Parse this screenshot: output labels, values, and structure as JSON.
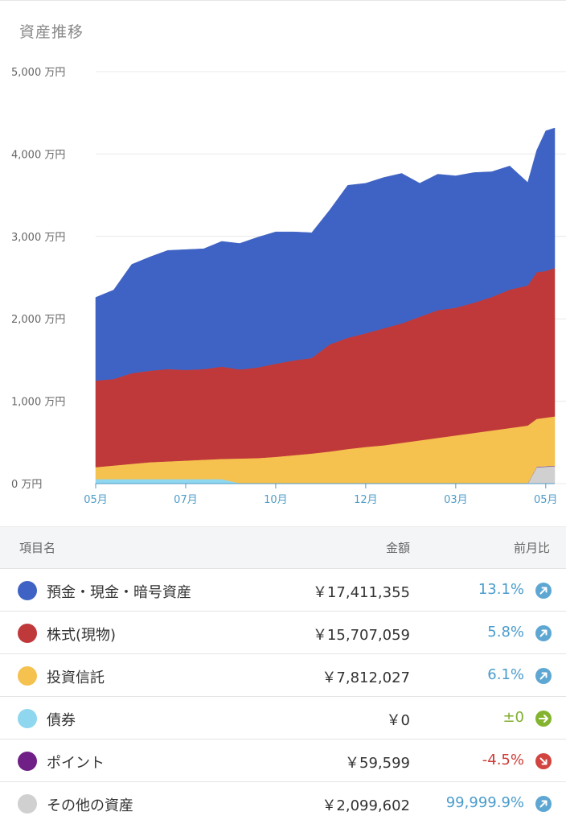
{
  "title": "資産推移",
  "table": {
    "headers": {
      "name": "項目名",
      "amount": "金額",
      "change": "前月比"
    },
    "rows": [
      {
        "name": "預金・現金・暗号資産",
        "amount": "￥17,411,355",
        "change": "13.1%",
        "color": "#3f63c4",
        "trend": "up",
        "trend_color": "#5ea7d3",
        "change_color": "#4a9ccc",
        "icon": "arrow-up-right-icon"
      },
      {
        "name": "株式(現物)",
        "amount": "￥15,707,059",
        "change": "5.8%",
        "color": "#c0393a",
        "trend": "up",
        "trend_color": "#5ea7d3",
        "change_color": "#4a9ccc",
        "icon": "arrow-up-right-icon"
      },
      {
        "name": "投資信託",
        "amount": "￥7,812,027",
        "change": "6.1%",
        "color": "#f5c14f",
        "trend": "up",
        "trend_color": "#5ea7d3",
        "change_color": "#4a9ccc",
        "icon": "arrow-up-right-icon"
      },
      {
        "name": "債券",
        "amount": "￥0",
        "change": "±0",
        "color": "#8fd6ef",
        "trend": "flat",
        "trend_color": "#84b42f",
        "change_color": "#7fae2d",
        "icon": "arrow-right-icon"
      },
      {
        "name": "ポイント",
        "amount": "￥59,599",
        "change": "-4.5%",
        "color": "#6f1f86",
        "trend": "down",
        "trend_color": "#d2443f",
        "change_color": "#cc3b36",
        "icon": "arrow-down-right-icon"
      },
      {
        "name": "その他の資産",
        "amount": "￥2,099,602",
        "change": "99,999.9%",
        "color": "#d0d0d0",
        "trend": "up",
        "trend_color": "#5ea7d3",
        "change_color": "#4a9ccc",
        "icon": "arrow-up-right-icon"
      }
    ]
  },
  "chart_data": {
    "type": "area",
    "stacked": true,
    "y_unit": "万円",
    "ylim": [
      0,
      5000
    ],
    "y_ticks": [
      0,
      1000,
      2000,
      3000,
      4000,
      5000
    ],
    "y_tick_labels": [
      "0 万円",
      "1,000 万円",
      "2,000 万円",
      "3,000 万円",
      "4,000 万円",
      "5,000 万円"
    ],
    "x_tick_labels": [
      "05月",
      "07月",
      "10月",
      "12月",
      "03月",
      "05月"
    ],
    "x_tick_positions": [
      0,
      2,
      4,
      6,
      8,
      10
    ],
    "grid": true,
    "x": [
      0,
      0.4,
      0.8,
      1.2,
      1.6,
      2.0,
      2.4,
      2.8,
      3.2,
      3.6,
      4.0,
      4.4,
      4.8,
      5.2,
      5.6,
      6.0,
      6.4,
      6.8,
      7.2,
      7.6,
      8.0,
      8.4,
      8.8,
      9.2,
      9.6,
      9.8,
      10.0,
      10.2
    ],
    "series": [
      {
        "color": "#d0d0d0",
        "values": [
          0,
          0,
          0,
          0,
          0,
          0,
          0,
          0,
          0,
          0,
          0,
          0,
          0,
          0,
          0,
          0,
          0,
          0,
          0,
          0,
          0,
          0,
          0,
          0,
          0,
          200,
          205,
          210
        ]
      },
      {
        "color": "#6f1f86",
        "values": [
          5,
          5,
          5,
          5,
          5,
          5,
          5,
          5,
          5,
          5,
          5,
          5,
          5,
          5,
          5,
          5,
          5,
          5,
          5,
          5,
          5,
          5,
          5,
          5,
          5,
          6,
          6,
          6
        ]
      },
      {
        "color": "#8fd6ef",
        "values": [
          50,
          50,
          50,
          50,
          50,
          50,
          50,
          50,
          0,
          0,
          0,
          0,
          0,
          0,
          0,
          0,
          0,
          0,
          0,
          0,
          0,
          0,
          0,
          0,
          0,
          0,
          0,
          0
        ]
      },
      {
        "color": "#f5c14f",
        "values": [
          145,
          165,
          185,
          205,
          215,
          225,
          235,
          245,
          300,
          305,
          320,
          340,
          360,
          385,
          415,
          440,
          460,
          490,
          520,
          550,
          580,
          610,
          640,
          670,
          700,
          580,
          590,
          600
        ]
      },
      {
        "color": "#c0393a",
        "values": [
          1050,
          1050,
          1100,
          1110,
          1120,
          1100,
          1100,
          1120,
          1080,
          1100,
          1130,
          1150,
          1160,
          1300,
          1350,
          1380,
          1420,
          1450,
          1500,
          1550,
          1550,
          1580,
          1620,
          1680,
          1700,
          1780,
          1780,
          1800
        ]
      },
      {
        "color": "#3f63c4",
        "values": [
          1010,
          1080,
          1320,
          1380,
          1440,
          1460,
          1460,
          1520,
          1530,
          1580,
          1600,
          1560,
          1520,
          1630,
          1850,
          1820,
          1830,
          1820,
          1620,
          1650,
          1600,
          1580,
          1520,
          1500,
          1250,
          1480,
          1700,
          1700
        ]
      }
    ]
  }
}
